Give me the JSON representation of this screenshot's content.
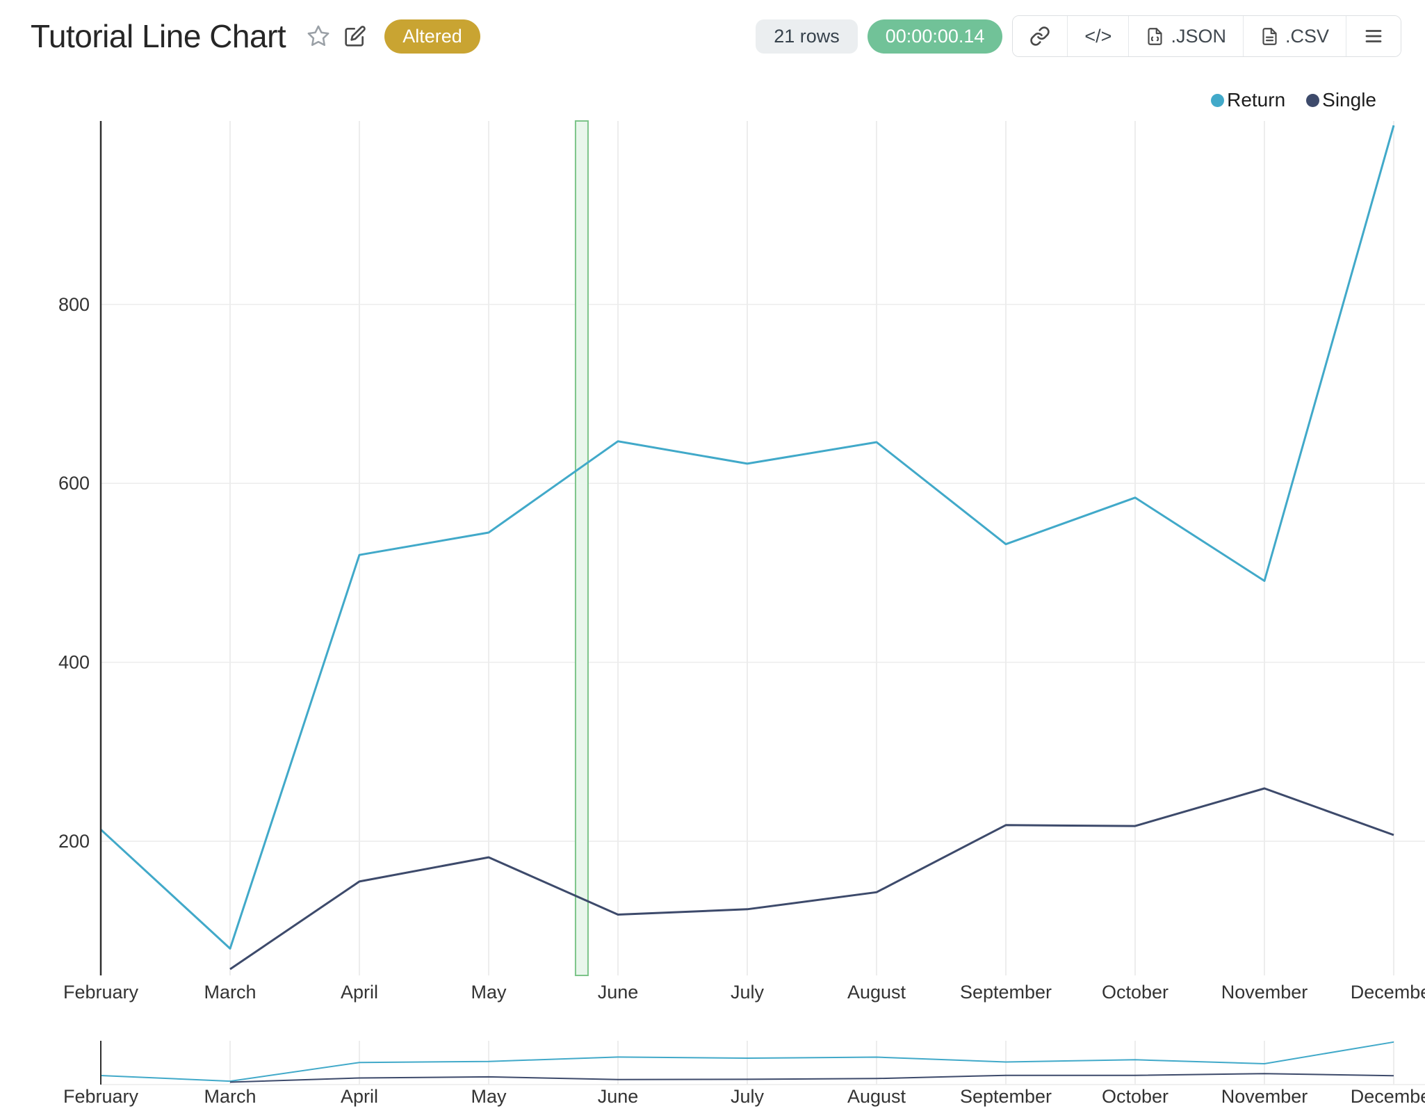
{
  "header": {
    "title": "Tutorial Line Chart",
    "status_badge": "Altered",
    "rows_badge": "21 rows",
    "runtime_badge": "00:00:00.14",
    "buttons": {
      "code": "</>",
      "json": ".JSON",
      "csv": ".CSV"
    }
  },
  "colors": {
    "status_badge_bg": "#c9a432",
    "rows_badge_bg": "#ebeef0",
    "runtime_badge_bg": "#71c298",
    "highlight_band_fill": "#e9f6ec",
    "highlight_band_border": "#7cc489",
    "axis_line": "#2f2f2f",
    "gridline": "#e7e7e7"
  },
  "chart_data": {
    "type": "line",
    "title": "Tutorial Line Chart",
    "xlabel": "",
    "ylabel": "",
    "categories": [
      "February",
      "March",
      "April",
      "May",
      "June",
      "July",
      "August",
      "September",
      "October",
      "November",
      "December"
    ],
    "series": [
      {
        "name": "Return",
        "color": "#41a9c9",
        "values": [
          213,
          80,
          520,
          545,
          647,
          622,
          646,
          532,
          584,
          491,
          1000
        ]
      },
      {
        "name": "Single",
        "color": "#3d4a6b",
        "values": [
          null,
          57,
          155,
          182,
          118,
          124,
          143,
          218,
          217,
          259,
          207
        ]
      }
    ],
    "yticks": [
      200,
      400,
      600,
      800
    ],
    "ylim": [
      50,
      1005
    ],
    "grid": true,
    "legend_position": "top-right",
    "highlight_band": {
      "between": [
        "May",
        "June"
      ],
      "fraction": 0.72
    },
    "range_slider_mini_chart": true
  }
}
